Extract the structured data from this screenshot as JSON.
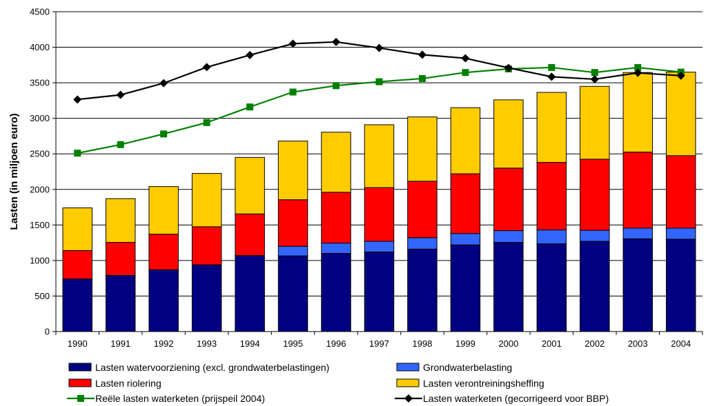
{
  "chart_data": {
    "type": "bar",
    "stacked": true,
    "categories": [
      "1990",
      "1991",
      "1992",
      "1993",
      "1994",
      "1995",
      "1996",
      "1997",
      "1998",
      "1999",
      "2000",
      "2001",
      "2002",
      "2003",
      "2004"
    ],
    "ylabel": "Lasten (in miljoen euro)",
    "xlabel": "",
    "ylim": [
      0,
      4500
    ],
    "yticks": [
      0,
      500,
      1000,
      1500,
      2000,
      2500,
      3000,
      3500,
      4000,
      4500
    ],
    "grid": true,
    "legend_position": "bottom",
    "series": [
      {
        "name": "Lasten watervoorziening (excl. grondwaterbelastingen)",
        "color": "#000080",
        "values": [
          740,
          790,
          870,
          940,
          1070,
          1065,
          1100,
          1120,
          1160,
          1220,
          1255,
          1235,
          1270,
          1305,
          1300
        ]
      },
      {
        "name": "Grondwaterbelasting",
        "color": "#3366FF",
        "values": [
          0,
          0,
          0,
          0,
          0,
          135,
          145,
          150,
          160,
          160,
          165,
          195,
          155,
          150,
          155
        ]
      },
      {
        "name": "Lasten riolering",
        "color": "#FF0000",
        "values": [
          400,
          465,
          500,
          535,
          585,
          655,
          715,
          755,
          795,
          840,
          880,
          950,
          1000,
          1070,
          1020
        ]
      },
      {
        "name": "Lasten verontreiningsheffing",
        "color": "#FFCC00",
        "values": [
          600,
          615,
          670,
          750,
          795,
          825,
          845,
          885,
          905,
          930,
          960,
          985,
          1025,
          1120,
          1175
        ]
      }
    ],
    "lines": [
      {
        "name": "Reële lasten waterketen (prijspeil 2004)",
        "color": "#008000",
        "marker": "square",
        "values": [
          2510,
          2630,
          2780,
          2940,
          3160,
          3370,
          3460,
          3515,
          3560,
          3645,
          3695,
          3715,
          3645,
          3715,
          3650
        ]
      },
      {
        "name": "Lasten waterketen (gecorrigeerd voor BBP)",
        "color": "#000000",
        "marker": "diamond",
        "values": [
          3265,
          3330,
          3495,
          3720,
          3890,
          4050,
          4075,
          3990,
          3895,
          3845,
          3710,
          3585,
          3550,
          3640,
          3600
        ]
      }
    ]
  }
}
